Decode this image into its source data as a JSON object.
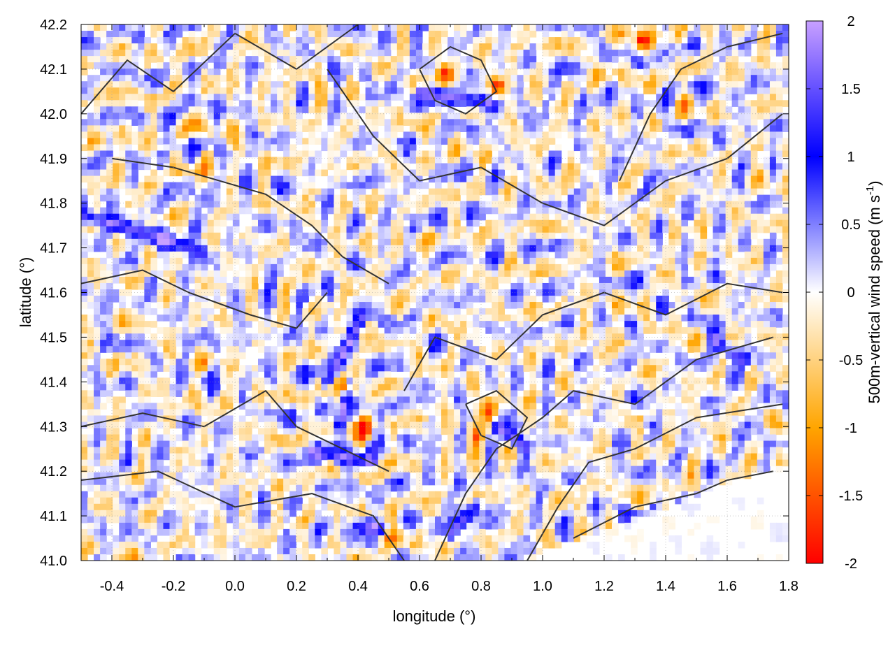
{
  "chart_data": {
    "type": "heatmap",
    "title": "",
    "xlabel": "longitude (°)",
    "ylabel": "latitude (°)",
    "xlim": [
      -0.5,
      1.8
    ],
    "ylim": [
      41.0,
      42.2
    ],
    "x_ticks": [
      "-0.4",
      "-0.2",
      "0.0",
      "0.2",
      "0.4",
      "0.6",
      "0.8",
      "1.0",
      "1.2",
      "1.4",
      "1.6",
      "1.8"
    ],
    "x_tick_values": [
      -0.4,
      -0.2,
      0.0,
      0.2,
      0.4,
      0.6,
      0.8,
      1.0,
      1.2,
      1.4,
      1.6,
      1.8
    ],
    "y_ticks": [
      "41.0",
      "41.1",
      "41.2",
      "41.3",
      "41.4",
      "41.5",
      "41.6",
      "41.7",
      "41.8",
      "41.9",
      "42.0",
      "42.1",
      "42.2"
    ],
    "y_tick_values": [
      41.0,
      41.1,
      41.2,
      41.3,
      41.4,
      41.5,
      41.6,
      41.7,
      41.8,
      41.9,
      42.0,
      42.1,
      42.2
    ],
    "grid": true,
    "colorbar": {
      "label_main": "500m-vertical wind speed (m s",
      "label_sup": "-1",
      "label_close": ")",
      "range": [
        -2,
        2
      ],
      "ticks": [
        "2",
        "1.5",
        "1",
        "0.5",
        "0",
        "-0.5",
        "-1",
        "-1.5",
        "-2"
      ],
      "tick_values": [
        2,
        1.5,
        1,
        0.5,
        0,
        -0.5,
        -1,
        -1.5,
        -2
      ],
      "colors": [
        {
          "value": -2.0,
          "color": "#ff0000"
        },
        {
          "value": -1.0,
          "color": "#ffa500"
        },
        {
          "value": 0.0,
          "color": "#ffffff"
        },
        {
          "value": 1.0,
          "color": "#0000ff"
        },
        {
          "value": 2.0,
          "color": "#c8a0ff"
        }
      ]
    },
    "updraft_features": [
      {
        "lon": -0.48,
        "lat": 41.77,
        "lon2": -0.1,
        "lat2": 41.69,
        "w": 1.6
      },
      {
        "lon": 0.3,
        "lat": 41.4,
        "lon2": 0.42,
        "lat2": 41.55,
        "w": 1.5
      },
      {
        "lon": 0.37,
        "lat": 41.4,
        "lon2": 0.34,
        "lat2": 41.3,
        "w": 1.8
      },
      {
        "lon": 0.25,
        "lat": 41.24,
        "lon2": 0.45,
        "lat2": 41.22,
        "w": 1.5
      },
      {
        "lon": 0.6,
        "lat": 42.05,
        "lon2": 0.85,
        "lat2": 42.02,
        "w": 1.6
      },
      {
        "lon": 0.85,
        "lat": 41.3,
        "lon2": 0.95,
        "lat2": 41.25,
        "w": 1.6
      },
      {
        "lon": 1.55,
        "lat": 41.5,
        "lon2": 1.65,
        "lat2": 41.45,
        "w": 1.4
      },
      {
        "lon": 0.4,
        "lat": 41.08,
        "lon2": 0.5,
        "lat2": 41.07,
        "w": 1.5
      },
      {
        "lon": 0.7,
        "lat": 41.06,
        "lon2": 0.78,
        "lat2": 41.12,
        "w": 1.5
      }
    ],
    "downdraft_features": [
      {
        "lon": 0.36,
        "lat": 41.39,
        "w": -1.9
      },
      {
        "lon": 0.42,
        "lat": 41.3,
        "w": -1.7
      },
      {
        "lon": 0.68,
        "lat": 42.09,
        "w": -1.8
      },
      {
        "lon": 0.85,
        "lat": 42.06,
        "w": -1.9
      },
      {
        "lon": 0.82,
        "lat": 41.34,
        "w": -1.8
      },
      {
        "lon": 0.78,
        "lat": 41.28,
        "w": -1.6
      },
      {
        "lon": 1.32,
        "lat": 42.16,
        "w": -1.6
      },
      {
        "lon": 0.5,
        "lat": 41.06,
        "w": -1.5
      },
      {
        "lon": 1.2,
        "lat": 41.52,
        "w": -0.9
      },
      {
        "lon": -0.1,
        "lat": 41.9,
        "w": -0.8
      }
    ]
  }
}
